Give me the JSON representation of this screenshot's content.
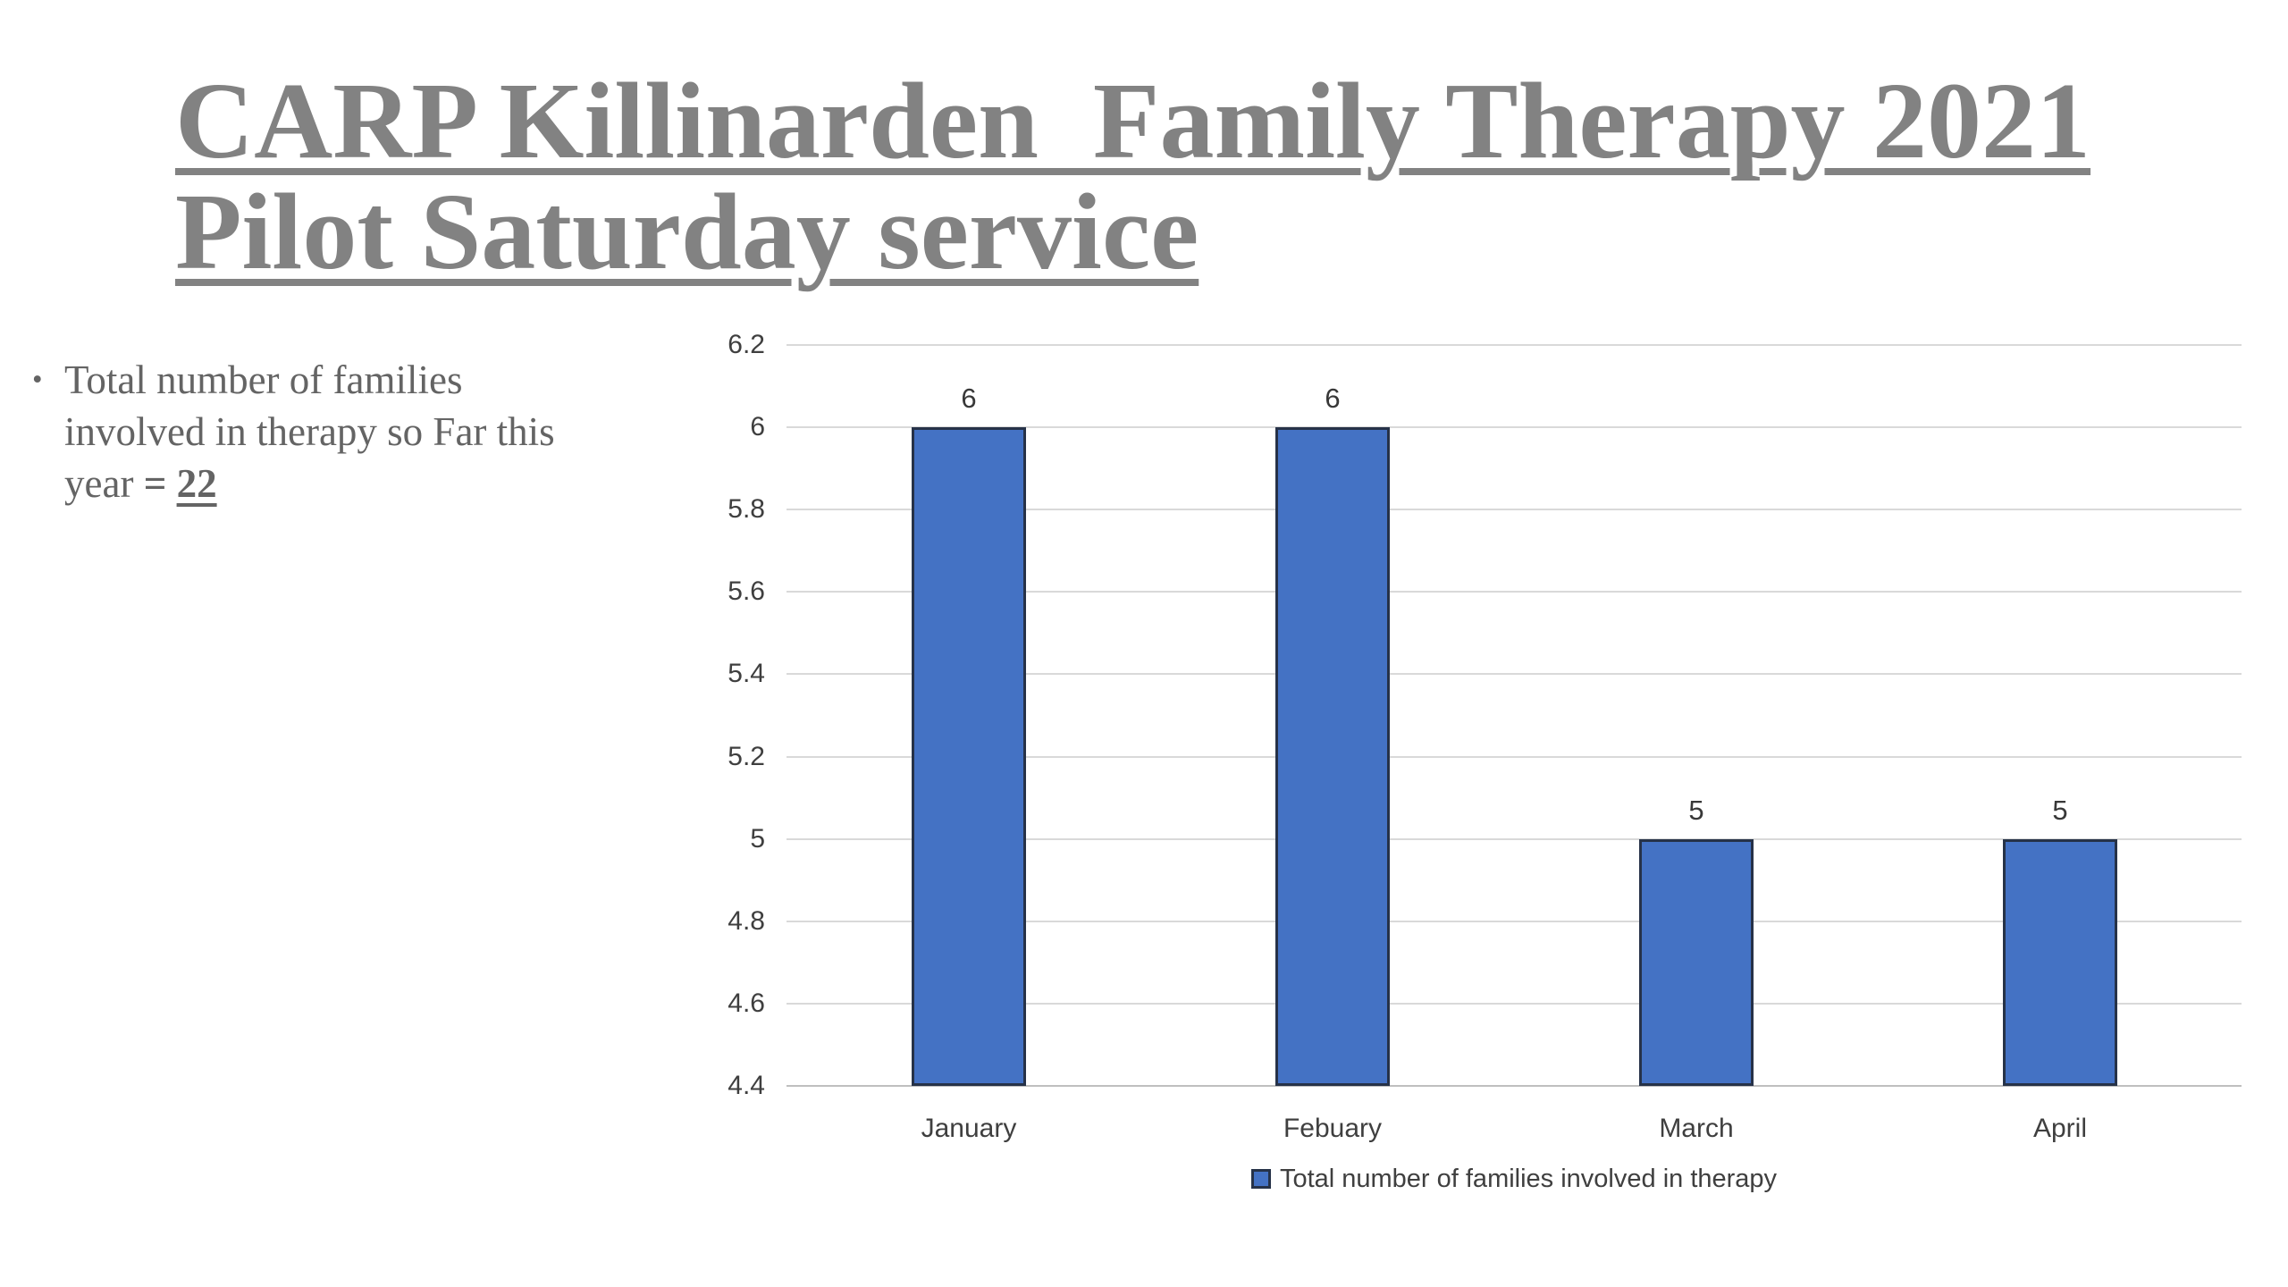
{
  "slide": {
    "title_lines": [
      "CARP Killinarden  Family Therapy 2021",
      "Pilot Saturday service"
    ],
    "bullet": {
      "marker": "•",
      "line1": "Total number of families",
      "line2": "involved in therapy so Far this",
      "line3_prefix": "year ",
      "line3_equals": "= ",
      "line3_value": "22"
    }
  },
  "chart_data": {
    "type": "bar",
    "title": "",
    "xlabel": "",
    "ylabel": "",
    "categories": [
      "January",
      "Febuary",
      "March",
      "April"
    ],
    "series": [
      {
        "name": "Total number of families involved in therapy",
        "values": [
          6,
          6,
          5,
          5
        ]
      }
    ],
    "data_labels": [
      "6",
      "6",
      "5",
      "5"
    ],
    "ylim": [
      4.4,
      6.2
    ],
    "ytick_step": 0.2,
    "yticks": [
      "6.2",
      "6",
      "5.8",
      "5.6",
      "5.4",
      "5.2",
      "5",
      "4.8",
      "4.6",
      "4.4"
    ],
    "grid": true,
    "legend_position": "bottom",
    "colors": {
      "bar_fill": "#4472c4",
      "bar_border": "#263248",
      "gridline": "#d9d9d9",
      "axis_line": "#bfbfbf",
      "chart_text": "#3f3f3f",
      "title_text": "#828282",
      "body_text": "#646464"
    }
  }
}
